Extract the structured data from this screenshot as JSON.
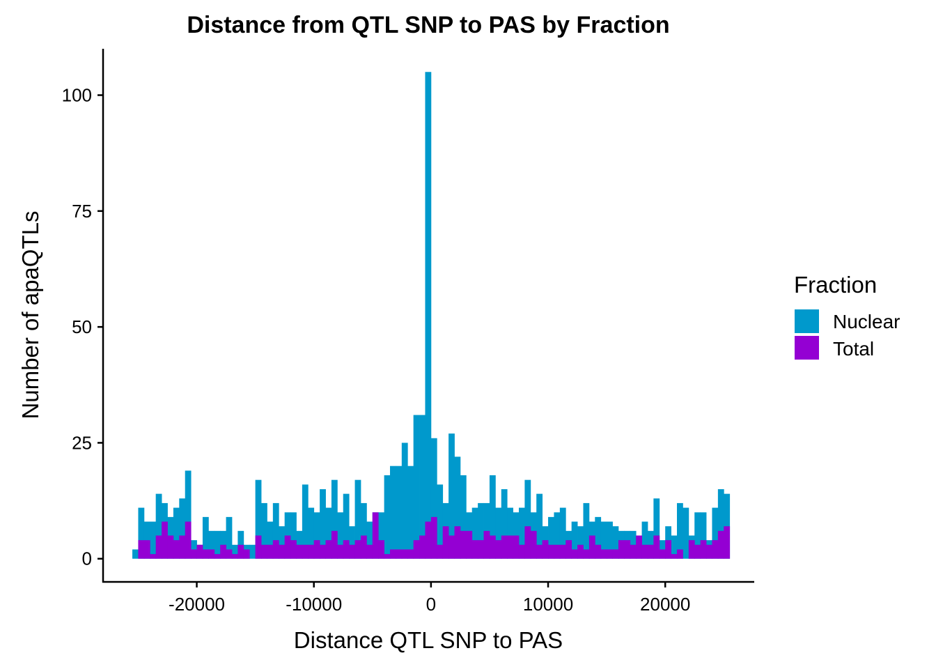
{
  "chart_data": {
    "type": "bar",
    "title": "Distance from QTL SNP to PAS by Fraction",
    "xlabel": "Distance QTL SNP to PAS",
    "ylabel": "Number of apaQTLs",
    "xlim": [
      -28000,
      27600
    ],
    "ylim": [
      -5,
      110
    ],
    "x_ticks": [
      -20000,
      -10000,
      0,
      10000,
      20000
    ],
    "y_ticks": [
      0,
      25,
      50,
      75,
      100
    ],
    "bin_width": 500,
    "bins_start": -25500,
    "stacking": "overlay",
    "legend": {
      "title": "Fraction",
      "position": "right"
    },
    "series": [
      {
        "name": "Nuclear",
        "color": "#0099CC",
        "values": [
          2,
          11,
          8,
          8,
          14,
          12,
          9,
          11,
          13,
          19,
          4,
          3,
          9,
          6,
          6,
          6,
          9,
          3,
          6,
          3,
          3,
          17,
          12,
          8,
          12,
          7,
          10,
          10,
          6,
          16,
          11,
          10,
          15,
          11,
          17,
          10,
          14,
          7,
          17,
          12,
          8,
          10,
          10,
          18,
          20,
          20,
          25,
          20,
          31,
          31,
          105,
          26,
          16,
          12,
          27,
          22,
          18,
          10,
          11,
          12,
          12,
          18,
          11,
          15,
          11,
          10,
          11,
          17,
          10,
          14,
          7,
          9,
          10,
          11,
          6,
          8,
          7,
          12,
          8,
          9,
          8,
          8,
          7,
          6,
          6,
          6,
          5,
          8,
          6,
          13,
          4,
          7,
          5,
          12,
          11,
          5,
          10,
          10,
          4,
          11,
          15,
          14
        ]
      },
      {
        "name": "Total",
        "color": "#9400D3",
        "values": [
          0,
          4,
          4,
          1,
          5,
          8,
          5,
          4,
          5,
          8,
          2,
          3,
          2,
          2,
          1,
          3,
          2,
          1,
          3,
          2,
          0,
          5,
          3,
          3,
          4,
          3,
          5,
          4,
          3,
          3,
          3,
          4,
          3,
          4,
          6,
          3,
          4,
          3,
          4,
          5,
          3,
          10,
          4,
          1,
          2,
          2,
          2,
          2,
          4,
          5,
          8,
          9,
          3,
          7,
          5,
          7,
          6,
          6,
          4,
          4,
          6,
          5,
          4,
          5,
          5,
          5,
          3,
          7,
          6,
          3,
          4,
          3,
          3,
          3,
          4,
          2,
          3,
          2,
          5,
          3,
          2,
          2,
          2,
          4,
          4,
          3,
          5,
          3,
          3,
          5,
          2,
          4,
          1,
          2,
          0,
          4,
          3,
          4,
          3,
          4,
          6,
          7
        ]
      }
    ]
  }
}
